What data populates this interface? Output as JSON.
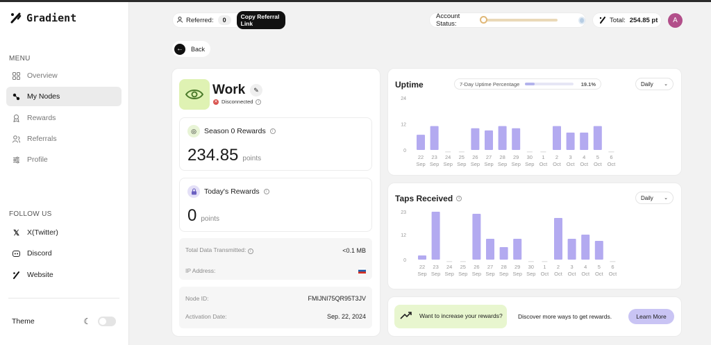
{
  "app": {
    "brand": "Gradient"
  },
  "sidebar": {
    "menu_title": "MENU",
    "items": [
      {
        "label": "Overview",
        "icon": "grid-icon",
        "active": false
      },
      {
        "label": "My Nodes",
        "icon": "nodes-icon",
        "active": true
      },
      {
        "label": "Rewards",
        "icon": "rewards-icon",
        "active": false
      },
      {
        "label": "Referrals",
        "icon": "referrals-icon",
        "active": false
      },
      {
        "label": "Profile",
        "icon": "profile-icon",
        "active": false
      }
    ],
    "follow_title": "FOLLOW US",
    "social": [
      {
        "label": "X(Twitter)",
        "icon": "x-icon"
      },
      {
        "label": "Discord",
        "icon": "discord-icon"
      },
      {
        "label": "Website",
        "icon": "website-icon"
      }
    ],
    "theme_label": "Theme"
  },
  "topbar": {
    "referred_label": "Referred:",
    "referred_count": "0",
    "copy_link_label": "Copy Referral Link",
    "account_status_label": "Account Status:",
    "total_label": "Total:",
    "total_value": "254.85 pt",
    "avatar_initial": "A"
  },
  "back_label": "Back",
  "node": {
    "name": "Work",
    "status": "Disconnected",
    "season_rewards_label": "Season 0 Rewards",
    "season_rewards_value": "234.85",
    "today_rewards_label": "Today's Rewards",
    "today_rewards_value": "0",
    "points_unit": "points",
    "data_transmitted_label": "Total Data Transmitted:",
    "data_transmitted_value": "<0.1 MB",
    "ip_label": "IP Address:",
    "node_id_label": "Node ID:",
    "node_id_value": "FMIJNI75QR95T3JV",
    "activation_label": "Activation Date:",
    "activation_value": "Sep. 22, 2024"
  },
  "uptime": {
    "title": "Uptime",
    "pct_label": "7-Day Uptime Percentage",
    "pct_value": "19.1%",
    "pct_fraction": 0.191,
    "period": "Daily"
  },
  "taps": {
    "title": "Taps Received",
    "period": "Daily"
  },
  "promo": {
    "left_text": "Want to increase your rewards?",
    "right_text": "Discover more ways to get rewards.",
    "button_label": "Learn More"
  },
  "chart_data": [
    {
      "type": "bar",
      "title": "Uptime",
      "categories": [
        "22 Sep",
        "23 Sep",
        "24 Sep",
        "25 Sep",
        "26 Sep",
        "27 Sep",
        "28 Sep",
        "29 Sep",
        "30 Sep",
        "1 Oct",
        "2 Oct",
        "3 Oct",
        "4 Oct",
        "5 Oct",
        "6 Oct"
      ],
      "values": [
        7,
        11,
        0,
        0,
        10,
        9,
        11,
        10,
        0,
        0,
        11,
        8,
        8,
        11,
        0
      ],
      "ylim": [
        0,
        24
      ],
      "yticks": [
        0,
        12,
        24
      ],
      "color": "#b3aaf0"
    },
    {
      "type": "bar",
      "title": "Taps Received",
      "categories": [
        "22 Sep",
        "23 Sep",
        "24 Sep",
        "25 Sep",
        "26 Sep",
        "27 Sep",
        "28 Sep",
        "29 Sep",
        "30 Sep",
        "1 Oct",
        "2 Oct",
        "3 Oct",
        "4 Oct",
        "5 Oct",
        "6 Oct"
      ],
      "values": [
        2,
        23,
        0,
        0,
        22,
        10,
        6,
        10,
        0,
        0,
        20,
        10,
        12,
        9,
        0
      ],
      "ylim": [
        0,
        23
      ],
      "yticks": [
        0,
        12,
        23
      ],
      "color": "#b3aaf0"
    }
  ]
}
